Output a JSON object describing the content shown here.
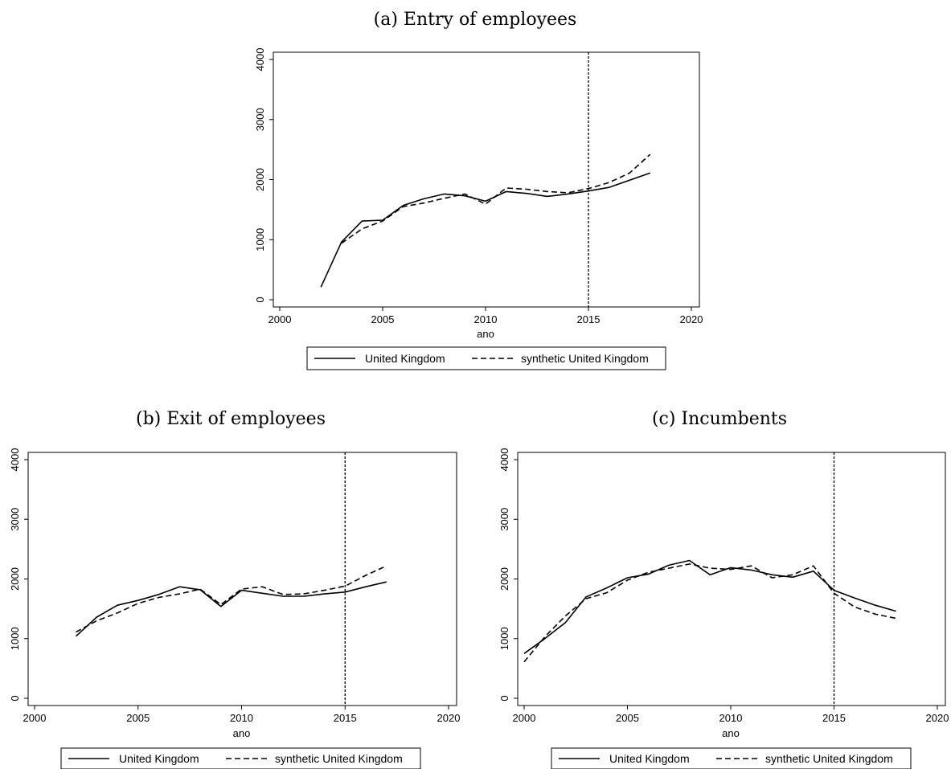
{
  "chart_data": [
    {
      "type": "line",
      "title": "(a) Entry of employees",
      "xlabel": "ano",
      "ylabel": "",
      "xlim": [
        2000,
        2020
      ],
      "ylim": [
        0,
        4000
      ],
      "xticks": [
        2000,
        2005,
        2010,
        2015,
        2020
      ],
      "yticks": [
        0,
        1000,
        2000,
        3000,
        4000
      ],
      "vline": 2015,
      "grid": false,
      "legend_position": "bottom",
      "series": [
        {
          "name": "United Kingdom",
          "style": "solid",
          "points": [
            [
              2002,
              210
            ],
            [
              2003,
              960
            ],
            [
              2004,
              1310
            ],
            [
              2005,
              1325
            ],
            [
              2006,
              1570
            ],
            [
              2007,
              1680
            ],
            [
              2008,
              1760
            ],
            [
              2009,
              1730
            ],
            [
              2010,
              1640
            ],
            [
              2011,
              1800
            ],
            [
              2012,
              1770
            ],
            [
              2013,
              1720
            ],
            [
              2014,
              1760
            ],
            [
              2015,
              1810
            ],
            [
              2016,
              1870
            ],
            [
              2017,
              1990
            ],
            [
              2018,
              2110
            ]
          ]
        },
        {
          "name": "synthetic United Kingdom",
          "style": "dashed",
          "points": [
            [
              2003,
              940
            ],
            [
              2004,
              1180
            ],
            [
              2005,
              1310
            ],
            [
              2006,
              1550
            ],
            [
              2007,
              1610
            ],
            [
              2008,
              1690
            ],
            [
              2009,
              1760
            ],
            [
              2010,
              1590
            ],
            [
              2011,
              1860
            ],
            [
              2012,
              1840
            ],
            [
              2013,
              1800
            ],
            [
              2014,
              1780
            ],
            [
              2015,
              1850
            ],
            [
              2016,
              1950
            ],
            [
              2017,
              2110
            ],
            [
              2018,
              2420
            ]
          ]
        }
      ]
    },
    {
      "type": "line",
      "title": "(b) Exit of employees",
      "xlabel": "ano",
      "ylabel": "",
      "xlim": [
        2000,
        2020
      ],
      "ylim": [
        0,
        4000
      ],
      "xticks": [
        2000,
        2005,
        2010,
        2015,
        2020
      ],
      "yticks": [
        0,
        1000,
        2000,
        3000,
        4000
      ],
      "vline": 2015,
      "grid": false,
      "legend_position": "bottom",
      "series": [
        {
          "name": "United Kingdom",
          "style": "solid",
          "points": [
            [
              2002,
              1040
            ],
            [
              2003,
              1360
            ],
            [
              2004,
              1560
            ],
            [
              2005,
              1640
            ],
            [
              2006,
              1740
            ],
            [
              2007,
              1870
            ],
            [
              2008,
              1820
            ],
            [
              2009,
              1540
            ],
            [
              2010,
              1810
            ],
            [
              2011,
              1760
            ],
            [
              2012,
              1710
            ],
            [
              2013,
              1710
            ],
            [
              2014,
              1750
            ],
            [
              2015,
              1780
            ],
            [
              2016,
              1870
            ],
            [
              2017,
              1950
            ]
          ]
        },
        {
          "name": "synthetic United Kingdom",
          "style": "dashed",
          "points": [
            [
              2002,
              1110
            ],
            [
              2003,
              1300
            ],
            [
              2004,
              1430
            ],
            [
              2005,
              1590
            ],
            [
              2006,
              1690
            ],
            [
              2007,
              1750
            ],
            [
              2008,
              1830
            ],
            [
              2009,
              1570
            ],
            [
              2010,
              1830
            ],
            [
              2011,
              1870
            ],
            [
              2012,
              1740
            ],
            [
              2013,
              1750
            ],
            [
              2014,
              1810
            ],
            [
              2015,
              1880
            ],
            [
              2016,
              2060
            ],
            [
              2017,
              2220
            ]
          ]
        }
      ]
    },
    {
      "type": "line",
      "title": "(c) Incumbents",
      "xlabel": "ano",
      "ylabel": "",
      "xlim": [
        2000,
        2020
      ],
      "ylim": [
        0,
        4000
      ],
      "xticks": [
        2000,
        2005,
        2010,
        2015,
        2020
      ],
      "yticks": [
        0,
        1000,
        2000,
        3000,
        4000
      ],
      "vline": 2015,
      "grid": false,
      "legend_position": "bottom",
      "series": [
        {
          "name": "United Kingdom",
          "style": "solid",
          "points": [
            [
              2000,
              750
            ],
            [
              2001,
              1000
            ],
            [
              2002,
              1270
            ],
            [
              2003,
              1700
            ],
            [
              2004,
              1850
            ],
            [
              2005,
              2020
            ],
            [
              2006,
              2080
            ],
            [
              2007,
              2230
            ],
            [
              2008,
              2310
            ],
            [
              2009,
              2070
            ],
            [
              2010,
              2190
            ],
            [
              2011,
              2150
            ],
            [
              2012,
              2070
            ],
            [
              2013,
              2030
            ],
            [
              2014,
              2130
            ],
            [
              2015,
              1810
            ],
            [
              2016,
              1680
            ],
            [
              2017,
              1560
            ],
            [
              2018,
              1460
            ]
          ]
        },
        {
          "name": "synthetic United Kingdom",
          "style": "dashed",
          "points": [
            [
              2000,
              610
            ],
            [
              2001,
              1030
            ],
            [
              2002,
              1380
            ],
            [
              2003,
              1670
            ],
            [
              2004,
              1770
            ],
            [
              2005,
              1980
            ],
            [
              2006,
              2110
            ],
            [
              2007,
              2180
            ],
            [
              2008,
              2250
            ],
            [
              2009,
              2180
            ],
            [
              2010,
              2160
            ],
            [
              2011,
              2220
            ],
            [
              2012,
              2020
            ],
            [
              2013,
              2070
            ],
            [
              2014,
              2220
            ],
            [
              2015,
              1760
            ],
            [
              2016,
              1530
            ],
            [
              2017,
              1410
            ],
            [
              2018,
              1340
            ]
          ]
        }
      ]
    }
  ]
}
